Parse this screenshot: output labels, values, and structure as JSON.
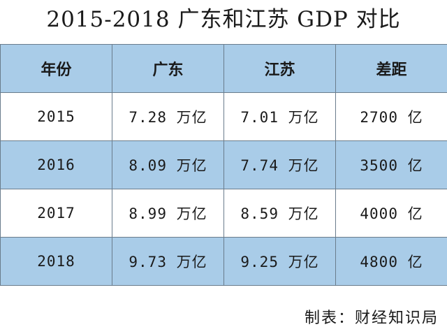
{
  "title": "2015-2018 广东和江苏 GDP 对比",
  "table": {
    "headers": [
      "年份",
      "广东",
      "江苏",
      "差距"
    ],
    "rows": [
      [
        "2015",
        "7.28 万亿",
        "7.01 万亿",
        "2700 亿"
      ],
      [
        "2016",
        "8.09 万亿",
        "7.74 万亿",
        "3500 亿"
      ],
      [
        "2017",
        "8.99 万亿",
        "8.59 万亿",
        "4000 亿"
      ],
      [
        "2018",
        "9.73 万亿",
        "9.25 万亿",
        "4800 亿"
      ]
    ]
  },
  "footer": "制表：财经知识局",
  "colors": {
    "header_bg": "#a9cce8",
    "band_bg": "#a9cce8",
    "border": "#6a7c8c"
  }
}
